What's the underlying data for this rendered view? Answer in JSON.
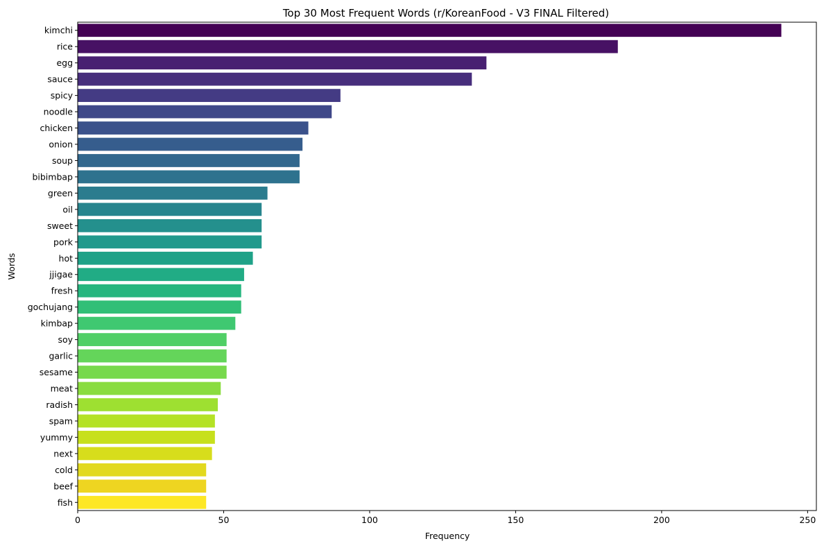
{
  "chart_data": {
    "type": "bar",
    "orientation": "horizontal",
    "title": "Top 30 Most Frequent Words (r/KoreanFood - V3 FINAL Filtered)",
    "xlabel": "Frequency",
    "ylabel": "Words",
    "xlim": [
      0,
      253
    ],
    "xticks": [
      0,
      50,
      100,
      150,
      200,
      250
    ],
    "grid": false,
    "categories": [
      "kimchi",
      "rice",
      "egg",
      "sauce",
      "spicy",
      "noodle",
      "chicken",
      "onion",
      "soup",
      "bibimbap",
      "green",
      "oil",
      "sweet",
      "pork",
      "hot",
      "jjigae",
      "fresh",
      "gochujang",
      "kimbap",
      "soy",
      "garlic",
      "sesame",
      "meat",
      "radish",
      "spam",
      "yummy",
      "next",
      "cold",
      "beef",
      "fish"
    ],
    "values": [
      241,
      185,
      140,
      135,
      90,
      87,
      79,
      77,
      76,
      76,
      65,
      63,
      63,
      63,
      60,
      57,
      56,
      56,
      54,
      51,
      51,
      51,
      49,
      48,
      47,
      47,
      46,
      44,
      44,
      44
    ],
    "colors": [
      "#440154",
      "#471164",
      "#482071",
      "#472e7c",
      "#443b84",
      "#3f4889",
      "#3b528b",
      "#365d8d",
      "#32688e",
      "#2e728e",
      "#2b7c8e",
      "#27858e",
      "#24908d",
      "#21998c",
      "#1fa288",
      "#21ac85",
      "#26b67f",
      "#31bf77",
      "#3fc871",
      "#50cf66",
      "#64d55a",
      "#77d94c",
      "#8adc3f",
      "#9ee031",
      "#b4e225",
      "#c7e01c",
      "#d7dd1c",
      "#e2d91e",
      "#eed521",
      "#fde725"
    ]
  }
}
